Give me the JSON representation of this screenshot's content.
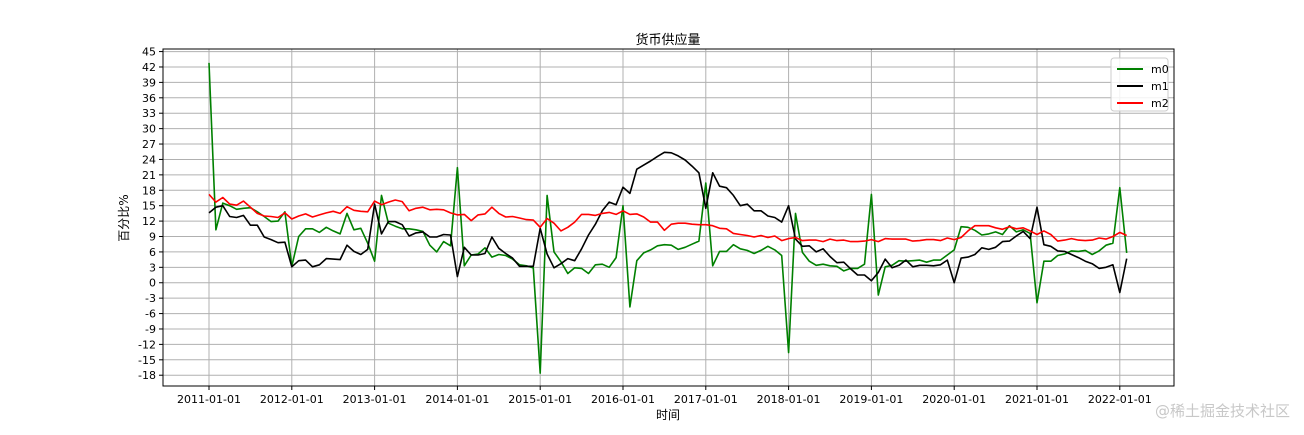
{
  "chart_data": {
    "type": "line",
    "title": "货币供应量",
    "xlabel": "时间",
    "ylabel": "百分比%",
    "x_ticks": [
      "2011-01-01",
      "2012-01-01",
      "2013-01-01",
      "2014-01-01",
      "2015-01-01",
      "2016-01-01",
      "2017-01-01",
      "2018-01-01",
      "2019-01-01",
      "2020-01-01",
      "2021-01-01",
      "2022-01-01"
    ],
    "y_ticks": [
      45,
      42,
      39,
      36,
      33,
      30,
      27,
      24,
      21,
      18,
      15,
      12,
      9,
      6,
      3,
      0,
      -3,
      -6,
      -9,
      -12,
      -15,
      -18
    ],
    "ylim": [
      -20.1,
      45.5
    ],
    "grid": true,
    "legend_position": "upper-right",
    "x_start": "2011-01",
    "x_frequency": "monthly",
    "series": [
      {
        "name": "m0",
        "color": "#008000",
        "values": [
          42.8,
          10.3,
          15.5,
          15.0,
          14.3,
          14.5,
          14.6,
          13.8,
          12.9,
          11.9,
          12.0,
          13.8,
          3.2,
          9.0,
          10.5,
          10.5,
          9.8,
          10.8,
          10.1,
          9.5,
          13.5,
          10.3,
          10.6,
          7.7,
          4.2,
          17.0,
          11.6,
          11.0,
          10.5,
          10.5,
          10.3,
          10.0,
          7.3,
          6.0,
          8.0,
          7.2,
          22.4,
          3.3,
          5.4,
          5.6,
          6.8,
          5.0,
          5.5,
          5.3,
          4.6,
          3.5,
          3.3,
          2.9,
          -17.6,
          17.0,
          6.0,
          4.1,
          1.8,
          2.9,
          2.8,
          1.8,
          3.5,
          3.6,
          3.0,
          4.9,
          15.0,
          -4.7,
          4.3,
          5.8,
          6.4,
          7.2,
          7.4,
          7.3,
          6.5,
          6.9,
          7.5,
          8.1,
          19.4,
          3.3,
          6.1,
          6.1,
          7.4,
          6.6,
          6.3,
          5.7,
          6.3,
          7.1,
          6.4,
          5.3,
          -13.6,
          13.5,
          5.9,
          4.2,
          3.4,
          3.6,
          3.3,
          3.2,
          2.3,
          2.8,
          2.8,
          3.6,
          17.2,
          -2.4,
          3.1,
          3.4,
          4.3,
          4.2,
          4.3,
          4.4,
          4.0,
          4.4,
          4.4,
          5.4,
          6.4,
          10.9,
          10.8,
          10.2,
          9.3,
          9.5,
          9.9,
          9.4,
          11.1,
          9.9,
          10.3,
          9.6,
          -3.9,
          4.2,
          4.2,
          5.3,
          5.6,
          6.2,
          6.1,
          6.3,
          5.5,
          6.2,
          7.3,
          7.7,
          18.5,
          5.8
        ]
      },
      {
        "name": "m1",
        "color": "#000000",
        "values": [
          13.6,
          14.7,
          15.0,
          12.9,
          12.7,
          13.1,
          11.2,
          11.2,
          8.9,
          8.4,
          7.8,
          7.9,
          3.1,
          4.3,
          4.4,
          3.1,
          3.5,
          4.7,
          4.6,
          4.5,
          7.3,
          6.1,
          5.5,
          6.5,
          15.3,
          9.5,
          11.9,
          11.9,
          11.3,
          9.1,
          9.7,
          9.9,
          8.9,
          8.9,
          9.4,
          9.3,
          1.2,
          6.9,
          5.4,
          5.4,
          5.7,
          8.9,
          6.7,
          5.7,
          4.8,
          3.2,
          3.2,
          3.2,
          10.6,
          5.6,
          2.9,
          3.7,
          4.7,
          4.3,
          6.6,
          9.3,
          11.4,
          14.0,
          15.7,
          15.2,
          18.6,
          17.4,
          22.1,
          22.9,
          23.7,
          24.6,
          25.4,
          25.3,
          24.7,
          23.9,
          22.7,
          21.4,
          14.5,
          21.4,
          18.8,
          18.5,
          17.0,
          15.0,
          15.3,
          14.0,
          14.0,
          13.0,
          12.7,
          11.8,
          15.0,
          8.5,
          7.1,
          7.2,
          6.0,
          6.6,
          5.1,
          3.9,
          4.0,
          2.7,
          1.5,
          1.5,
          0.4,
          2.0,
          4.6,
          2.9,
          3.4,
          4.4,
          3.1,
          3.4,
          3.4,
          3.3,
          3.5,
          4.4,
          0.0,
          4.8,
          5.0,
          5.5,
          6.8,
          6.5,
          6.9,
          8.0,
          8.1,
          9.1,
          10.0,
          8.6,
          14.7,
          7.4,
          7.1,
          6.2,
          6.1,
          5.5,
          4.9,
          4.2,
          3.7,
          2.8,
          3.0,
          3.5,
          -1.9,
          4.7
        ]
      },
      {
        "name": "m2",
        "color": "#ff0000",
        "values": [
          17.2,
          15.7,
          16.6,
          15.3,
          15.1,
          15.9,
          14.7,
          13.5,
          13.0,
          12.9,
          12.7,
          13.6,
          12.4,
          13.0,
          13.4,
          12.8,
          13.2,
          13.6,
          13.9,
          13.5,
          14.8,
          14.1,
          13.9,
          13.8,
          15.9,
          15.2,
          15.7,
          16.1,
          15.8,
          14.0,
          14.5,
          14.7,
          14.2,
          14.3,
          14.2,
          13.6,
          13.2,
          13.3,
          12.1,
          13.2,
          13.4,
          14.7,
          13.5,
          12.8,
          12.9,
          12.6,
          12.3,
          12.2,
          10.8,
          12.5,
          11.6,
          10.1,
          10.8,
          11.8,
          13.3,
          13.3,
          13.1,
          13.5,
          13.7,
          13.3,
          14.0,
          13.3,
          13.4,
          12.8,
          11.8,
          11.8,
          10.2,
          11.4,
          11.6,
          11.6,
          11.4,
          11.3,
          11.3,
          11.1,
          10.6,
          10.5,
          9.6,
          9.4,
          9.2,
          8.9,
          9.2,
          8.8,
          9.1,
          8.2,
          8.6,
          8.8,
          8.2,
          8.3,
          8.3,
          8.0,
          8.5,
          8.2,
          8.3,
          8.0,
          8.0,
          8.1,
          8.4,
          8.0,
          8.6,
          8.5,
          8.5,
          8.5,
          8.1,
          8.2,
          8.4,
          8.4,
          8.2,
          8.7,
          8.4,
          8.8,
          10.1,
          11.1,
          11.1,
          11.1,
          10.7,
          10.4,
          10.9,
          10.5,
          10.7,
          10.1,
          9.4,
          10.1,
          9.4,
          8.1,
          8.3,
          8.6,
          8.3,
          8.2,
          8.3,
          8.7,
          8.5,
          9.0,
          9.8,
          9.2
        ]
      }
    ]
  },
  "watermark": "@稀土掘金技术社区"
}
